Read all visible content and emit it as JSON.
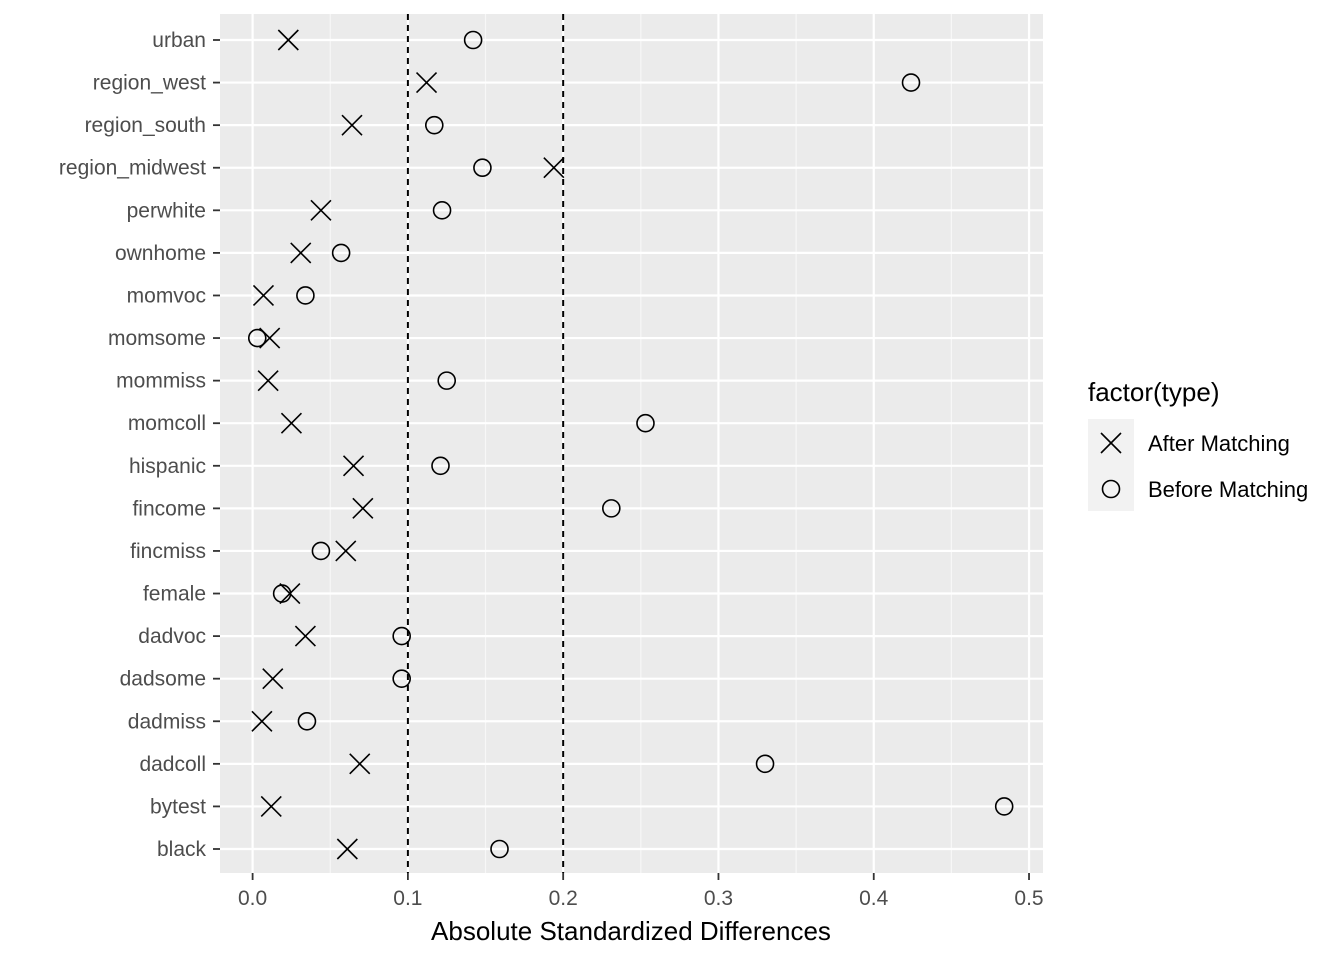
{
  "chart_data": {
    "type": "scatter",
    "xlabel": "Absolute Standardized Differences",
    "ylabel": "",
    "xlim": [
      -0.021,
      0.509
    ],
    "x_ticks": [
      "0.0",
      "0.1",
      "0.2",
      "0.3",
      "0.4",
      "0.5"
    ],
    "x_tick_values": [
      0,
      0.1,
      0.2,
      0.3,
      0.4,
      0.5
    ],
    "reference_lines": [
      0.1,
      0.2
    ],
    "grid": true,
    "legend_position": "right",
    "categories": [
      "urban",
      "region_west",
      "region_south",
      "region_midwest",
      "perwhite",
      "ownhome",
      "momvoc",
      "momsome",
      "mommiss",
      "momcoll",
      "hispanic",
      "fincome",
      "fincmiss",
      "female",
      "dadvoc",
      "dadsome",
      "dadmiss",
      "dadcoll",
      "bytest",
      "black"
    ],
    "series": [
      {
        "name": "After Matching",
        "marker": "cross",
        "values": [
          0.023,
          0.112,
          0.064,
          0.194,
          0.044,
          0.031,
          0.007,
          0.011,
          0.01,
          0.025,
          0.065,
          0.071,
          0.06,
          0.024,
          0.034,
          0.013,
          0.006,
          0.069,
          0.012,
          0.061
        ]
      },
      {
        "name": "Before Matching",
        "marker": "circle",
        "values": [
          0.142,
          0.424,
          0.117,
          0.148,
          0.122,
          0.057,
          0.034,
          0.003,
          0.125,
          0.253,
          0.121,
          0.231,
          0.044,
          0.019,
          0.096,
          0.096,
          0.035,
          0.33,
          0.484,
          0.159
        ]
      }
    ],
    "legend": {
      "title": "factor(type)",
      "entries": [
        "After Matching",
        "Before Matching"
      ]
    }
  }
}
